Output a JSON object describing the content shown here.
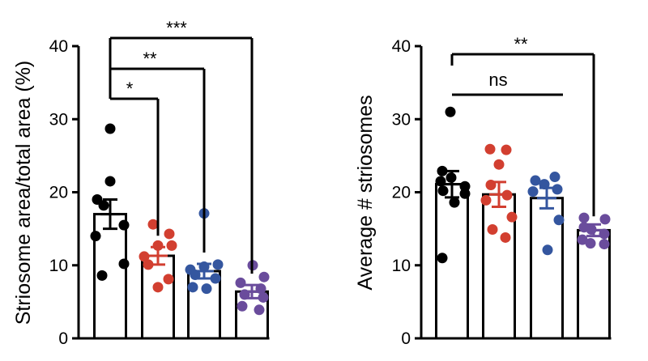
{
  "chart_data": [
    {
      "type": "bar",
      "ylabel": "Striosome area/total area (%)",
      "ylim": [
        0,
        40
      ],
      "yticks": [
        0,
        10,
        20,
        30,
        40
      ],
      "colors": [
        "#000000",
        "#d23f30",
        "#34569f",
        "#6a4c9c"
      ],
      "means": [
        17.0,
        11.3,
        9.2,
        6.4
      ],
      "sems": [
        2.0,
        1.2,
        1.0,
        0.9
      ],
      "points": [
        [
          28.7,
          21.5,
          19.0,
          18.2,
          15.5,
          14.0,
          10.2,
          8.6
        ],
        [
          15.6,
          14.3,
          12.7,
          12.7,
          11.2,
          10.1,
          8.1,
          7.0
        ],
        [
          17.1,
          10.1,
          9.8,
          9.4,
          8.7,
          8.2,
          7.0,
          6.8
        ],
        [
          10.0,
          8.4,
          7.6,
          6.8,
          6.0,
          5.6,
          4.4,
          3.9
        ]
      ],
      "comparisons": [
        {
          "from": 0,
          "to": 1,
          "label": "*"
        },
        {
          "from": 0,
          "to": 2,
          "label": "**"
        },
        {
          "from": 0,
          "to": 3,
          "label": "***"
        }
      ]
    },
    {
      "type": "bar",
      "ylabel": "Average # striosomes",
      "ylim": [
        0,
        40
      ],
      "yticks": [
        0,
        10,
        20,
        30,
        40
      ],
      "colors": [
        "#000000",
        "#d23f30",
        "#34569f",
        "#6a4c9c"
      ],
      "means": [
        21.1,
        19.7,
        19.2,
        14.8
      ],
      "sems": [
        1.8,
        1.7,
        1.4,
        0.8
      ],
      "points": [
        [
          31.0,
          22.9,
          22.0,
          21.5,
          20.8,
          20.2,
          19.8,
          18.6,
          11.0
        ],
        [
          25.9,
          25.8,
          23.8,
          21.0,
          19.6,
          18.9,
          16.6,
          14.9,
          13.8
        ],
        [
          22.1,
          21.6,
          21.1,
          20.4,
          20.1,
          16.2,
          12.1
        ],
        [
          16.5,
          16.3,
          15.2,
          14.9,
          14.3,
          13.5,
          13.0,
          12.9
        ]
      ],
      "comparisons": [
        {
          "from": 0,
          "to": 2,
          "label": "ns"
        },
        {
          "from": 0,
          "to": 3,
          "label": "**"
        }
      ]
    }
  ]
}
